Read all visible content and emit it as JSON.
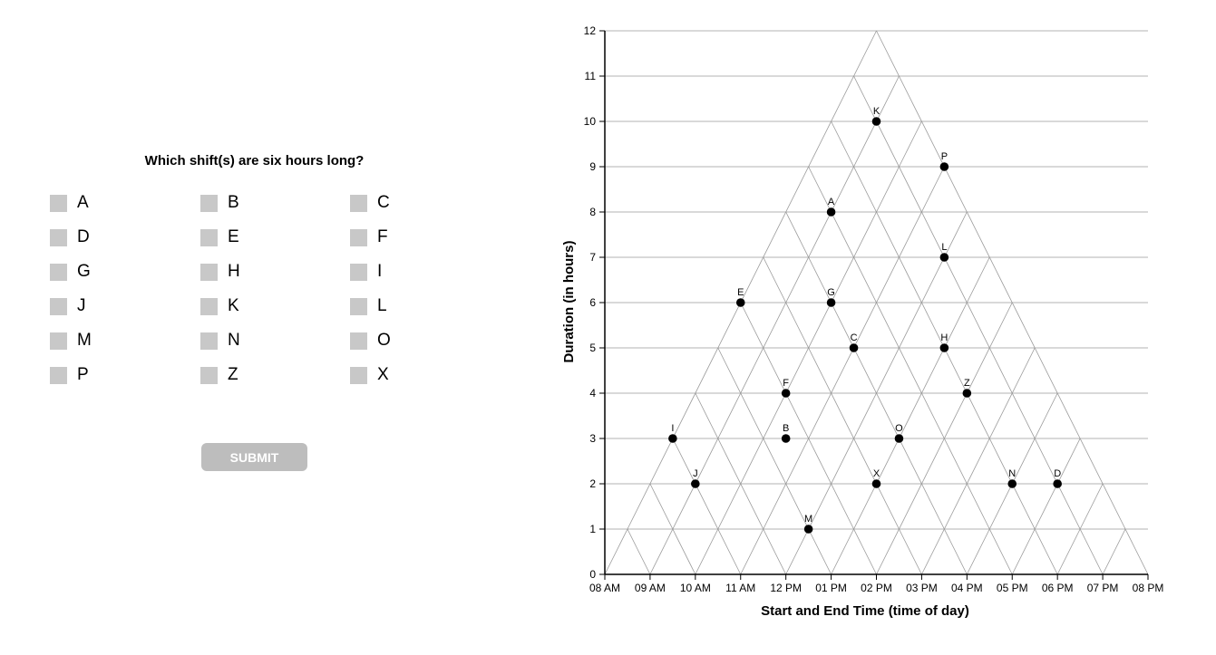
{
  "question": "Which shift(s) are six hours long?",
  "options": [
    "A",
    "B",
    "C",
    "D",
    "E",
    "F",
    "G",
    "H",
    "I",
    "J",
    "K",
    "L",
    "M",
    "N",
    "O",
    "P",
    "Z",
    "X"
  ],
  "submit_label": "SUBMIT",
  "chart_data": {
    "type": "scatter",
    "xlabel": "Start and End Time (time of day)",
    "ylabel": "Duration (in hours)",
    "x_ticks": [
      "08 AM",
      "09 AM",
      "10 AM",
      "11 AM",
      "12 PM",
      "01 PM",
      "02 PM",
      "03 PM",
      "04 PM",
      "05 PM",
      "06 PM",
      "07 PM",
      "08 PM"
    ],
    "y_ticks": [
      "0",
      "1",
      "2",
      "3",
      "4",
      "5",
      "6",
      "7",
      "8",
      "9",
      "10",
      "11",
      "12"
    ],
    "xlim": [
      "08 AM",
      "08 PM"
    ],
    "ylim": [
      0,
      12
    ],
    "grid": "triangular",
    "points": [
      {
        "label": "K",
        "midpoint": "02 PM",
        "duration": 10
      },
      {
        "label": "P",
        "midpoint": "03:30 PM",
        "duration": 9
      },
      {
        "label": "A",
        "midpoint": "01 PM",
        "duration": 8
      },
      {
        "label": "L",
        "midpoint": "03:30 PM",
        "duration": 7
      },
      {
        "label": "E",
        "midpoint": "11 AM",
        "duration": 6
      },
      {
        "label": "G",
        "midpoint": "01 PM",
        "duration": 6
      },
      {
        "label": "C",
        "midpoint": "01:30 PM",
        "duration": 5
      },
      {
        "label": "H",
        "midpoint": "03:30 PM",
        "duration": 5
      },
      {
        "label": "F",
        "midpoint": "12 PM",
        "duration": 4
      },
      {
        "label": "Z",
        "midpoint": "04 PM",
        "duration": 4
      },
      {
        "label": "I",
        "midpoint": "09:30 AM",
        "duration": 3
      },
      {
        "label": "B",
        "midpoint": "12 PM",
        "duration": 3
      },
      {
        "label": "O",
        "midpoint": "02:30 PM",
        "duration": 3
      },
      {
        "label": "J",
        "midpoint": "10 AM",
        "duration": 2
      },
      {
        "label": "X",
        "midpoint": "02 PM",
        "duration": 2
      },
      {
        "label": "N",
        "midpoint": "05 PM",
        "duration": 2
      },
      {
        "label": "D",
        "midpoint": "06 PM",
        "duration": 2
      },
      {
        "label": "M",
        "midpoint": "12:30 PM",
        "duration": 1
      }
    ]
  }
}
